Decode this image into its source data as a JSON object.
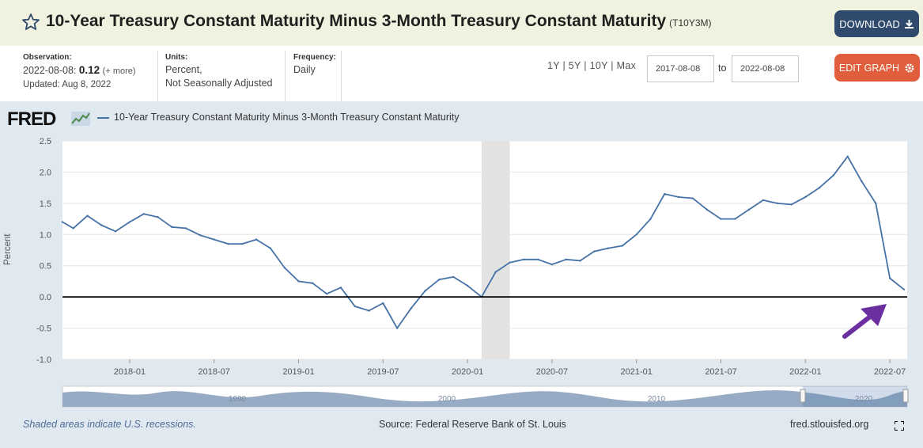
{
  "header": {
    "title": "10-Year Treasury Constant Maturity Minus 3-Month Treasury Constant Maturity",
    "series_id": "(T10Y3M)",
    "download_label": "DOWNLOAD",
    "edit_label": "EDIT GRAPH"
  },
  "meta": {
    "observation_label": "Observation:",
    "observation_date": "2022-08-08:",
    "observation_value": "0.12",
    "more": "(+ more)",
    "updated": "Updated: Aug 8, 2022",
    "units_label": "Units:",
    "units_line1": "Percent,",
    "units_line2": "Not Seasonally Adjusted",
    "frequency_label": "Frequency:",
    "frequency": "Daily"
  },
  "range": {
    "r1y": "1Y",
    "r5y": "5Y",
    "r10y": "10Y",
    "rmax": "Max",
    "sep": "|",
    "start_date": "2017-08-08",
    "to": "to",
    "end_date": "2022-08-08"
  },
  "graph": {
    "logo": "FRED",
    "legend": "10-Year Treasury Constant Maturity Minus 3-Month Treasury Constant Maturity",
    "source": "Source: Federal Reserve Bank of St. Louis",
    "site": "fred.stlouisfed.org",
    "recession_note": "Shaded areas indicate U.S. recessions."
  },
  "colors": {
    "line": "#4572a7",
    "recession": "#e2e2e2",
    "zero_line": "#000000",
    "arrow": "#6b2fa0",
    "download_btn": "#2f4a6d",
    "edit_btn": "#e05e3c"
  },
  "icons": {
    "star": "star-outline-icon",
    "download": "download-icon",
    "gear": "gear-icon",
    "fullscreen": "fullscreen-icon"
  },
  "chart_data": {
    "type": "line",
    "title": "",
    "xlabel": "",
    "ylabel": "Percent",
    "ylim": [
      -1.0,
      2.5
    ],
    "yticks": [
      "2.5",
      "2.0",
      "1.5",
      "1.0",
      "0.5",
      "0.0",
      "-0.5",
      "-1.0"
    ],
    "xticks": [
      "2018-01",
      "2018-07",
      "2019-01",
      "2019-07",
      "2020-01",
      "2020-07",
      "2021-01",
      "2021-07",
      "2022-01",
      "2022-07"
    ],
    "grid": "horizontal",
    "recession": [
      "2020-02",
      "2020-04"
    ],
    "navigator_labels": [
      "1990",
      "2000",
      "2010",
      "2020"
    ],
    "series": [
      {
        "name": "10-Year Treasury Constant Maturity Minus 3-Month Treasury Constant Maturity",
        "x": [
          "2017-08",
          "2017-09",
          "2017-10",
          "2017-11",
          "2017-12",
          "2018-01",
          "2018-02",
          "2018-03",
          "2018-04",
          "2018-05",
          "2018-06",
          "2018-07",
          "2018-08",
          "2018-09",
          "2018-10",
          "2018-11",
          "2018-12",
          "2019-01",
          "2019-02",
          "2019-03",
          "2019-04",
          "2019-05",
          "2019-06",
          "2019-07",
          "2019-08",
          "2019-09",
          "2019-10",
          "2019-11",
          "2019-12",
          "2020-01",
          "2020-02",
          "2020-03",
          "2020-04",
          "2020-05",
          "2020-06",
          "2020-07",
          "2020-08",
          "2020-09",
          "2020-10",
          "2020-11",
          "2020-12",
          "2021-01",
          "2021-02",
          "2021-03",
          "2021-04",
          "2021-05",
          "2021-06",
          "2021-07",
          "2021-08",
          "2021-09",
          "2021-10",
          "2021-11",
          "2021-12",
          "2022-01",
          "2022-02",
          "2022-03",
          "2022-04",
          "2022-05",
          "2022-06",
          "2022-07",
          "2022-08"
        ],
        "y": [
          1.2,
          1.1,
          1.3,
          1.15,
          1.05,
          1.2,
          1.33,
          1.28,
          1.12,
          1.1,
          0.99,
          0.92,
          0.85,
          0.85,
          0.92,
          0.78,
          0.47,
          0.25,
          0.22,
          0.05,
          0.15,
          -0.15,
          -0.22,
          -0.1,
          -0.5,
          -0.18,
          0.1,
          0.28,
          0.32,
          0.18,
          0.0,
          0.4,
          0.55,
          0.6,
          0.6,
          0.52,
          0.6,
          0.58,
          0.73,
          0.78,
          0.82,
          1.0,
          1.25,
          1.65,
          1.6,
          1.58,
          1.4,
          1.25,
          1.25,
          1.4,
          1.55,
          1.5,
          1.48,
          1.6,
          1.75,
          1.95,
          2.25,
          1.85,
          1.5,
          0.3,
          0.12
        ]
      }
    ]
  }
}
